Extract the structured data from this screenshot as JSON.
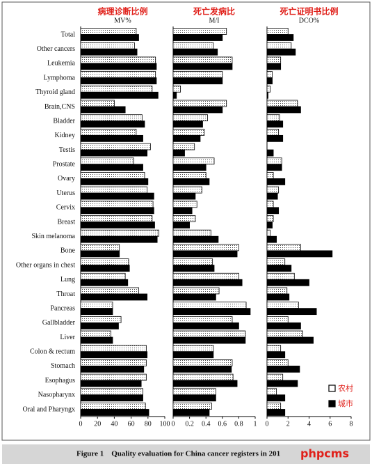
{
  "chart_data": [
    {
      "type": "bar",
      "orientation": "horizontal",
      "title": "病理诊断比例",
      "subtitle": "MV%",
      "categories": [
        "Total",
        "Other cancers",
        "Leukemia",
        "Lymphoma",
        "Thyroid gland",
        "Brain,CNS",
        "Bladder",
        "Kidney",
        "Testis",
        "Prostate",
        "Ovary",
        "Uterus",
        "Cervix",
        "Breast",
        "Skin melanoma",
        "Bone",
        "Other organs in chest",
        "Lung",
        "Throat",
        "Pancreas",
        "Gallbladder",
        "Liver",
        "Colon & rectum",
        "Stomach",
        "Esophagus",
        "Nasopharynx",
        "Oral and Pharyngx"
      ],
      "series": [
        {
          "name": "农村",
          "color": "#ffffff",
          "pattern": "dotted",
          "values": [
            66,
            64,
            89,
            89,
            85,
            40,
            73,
            66,
            83,
            63,
            76,
            79,
            86,
            85,
            93,
            46,
            57,
            53,
            69,
            38,
            48,
            36,
            78,
            78,
            78,
            74,
            77
          ]
        },
        {
          "name": "城市",
          "color": "#000000",
          "values": [
            69,
            67,
            90,
            90,
            92,
            53,
            76,
            74,
            79,
            74,
            80,
            87,
            87,
            88,
            91,
            46,
            58,
            56,
            79,
            38,
            45,
            38,
            79,
            75,
            72,
            74,
            81
          ]
        }
      ],
      "xlim": [
        0,
        100
      ],
      "xticks": [
        0,
        20,
        40,
        60,
        80,
        100
      ]
    },
    {
      "type": "bar",
      "orientation": "horizontal",
      "title": "死亡发病比",
      "subtitle": "M/I",
      "series": [
        {
          "values": [
            0.65,
            0.49,
            0.72,
            0.6,
            0.09,
            0.65,
            0.42,
            0.38,
            0.26,
            0.5,
            0.4,
            0.35,
            0.29,
            0.27,
            0.46,
            0.8,
            0.48,
            0.8,
            0.56,
            0.89,
            0.72,
            0.88,
            0.49,
            0.72,
            0.73,
            0.52,
            0.47
          ]
        },
        {
          "values": [
            0.6,
            0.54,
            0.72,
            0.6,
            0.04,
            0.6,
            0.36,
            0.33,
            0.14,
            0.4,
            0.44,
            0.27,
            0.23,
            0.2,
            0.55,
            0.78,
            0.5,
            0.84,
            0.52,
            0.94,
            0.8,
            0.88,
            0.49,
            0.71,
            0.78,
            0.52,
            0.44
          ]
        }
      ],
      "xlim": [
        0,
        1
      ],
      "xticks": [
        0,
        0.2,
        0.4,
        0.6,
        0.8,
        1
      ]
    },
    {
      "type": "bar",
      "orientation": "horizontal",
      "title": "死亡证明书比例",
      "subtitle": "DCO%",
      "series": [
        {
          "values": [
            2.0,
            2.3,
            1.3,
            0.5,
            0.3,
            2.9,
            1.2,
            1.1,
            0,
            1.4,
            0.6,
            1.1,
            0.6,
            0.6,
            0.3,
            3.2,
            1.7,
            2.6,
            1.9,
            3.0,
            2.0,
            3.4,
            1.3,
            2.0,
            1.5,
            0.9,
            1.3
          ]
        },
        {
          "values": [
            2.5,
            2.7,
            1.3,
            0.5,
            0.1,
            3.2,
            1.5,
            1.5,
            0.6,
            1.4,
            1.7,
            1.0,
            1.1,
            0.5,
            0.9,
            6.2,
            2.3,
            4.0,
            2.1,
            4.7,
            3.2,
            4.4,
            1.7,
            3.1,
            2.9,
            1.7,
            1.7
          ]
        }
      ],
      "xlim": [
        0,
        8
      ],
      "xticks": [
        0,
        2,
        4,
        6,
        8
      ]
    }
  ],
  "caption": "Figure 1　Quality evaluation for China cancer registers in 201",
  "watermark": "phpcms"
}
